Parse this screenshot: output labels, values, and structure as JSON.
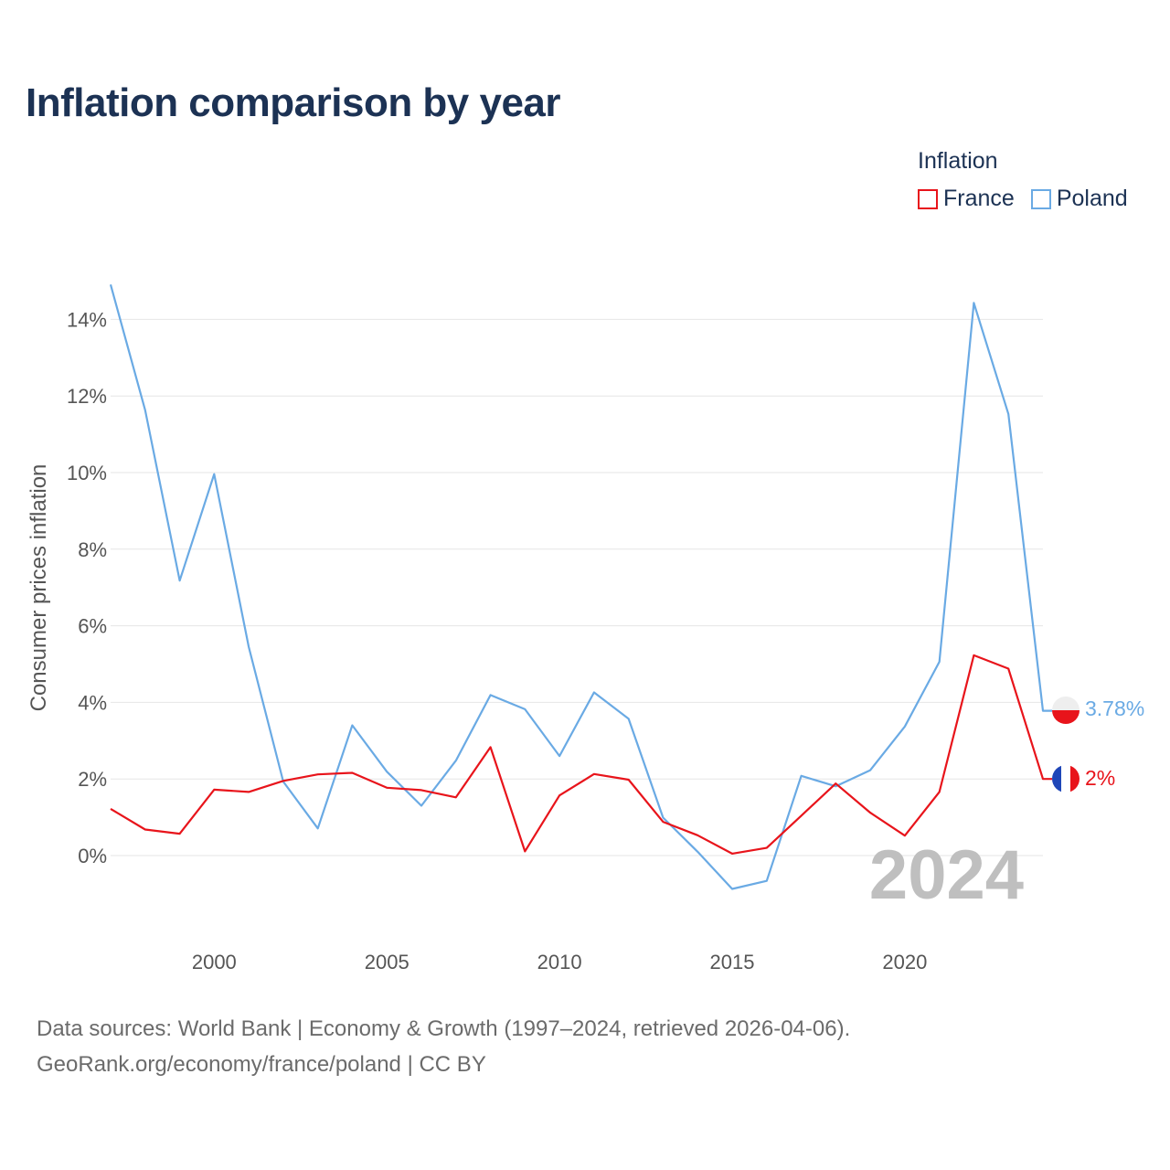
{
  "header": {
    "title": "Inflation comparison by year"
  },
  "legend": {
    "title": "Inflation",
    "items": [
      {
        "label": "France",
        "color": "#e8141b"
      },
      {
        "label": "Poland",
        "color": "#6aaae4"
      }
    ]
  },
  "footer": {
    "line1": "Data sources: World Bank | Economy & Growth (1997–2024, retrieved 2026-04-06).",
    "line2": "GeoRank.org/economy/france/poland | CC BY"
  },
  "chart_data": {
    "type": "line",
    "title": "Inflation comparison by year",
    "ylabel": "Consumer prices inflation",
    "xlabel": "",
    "year_watermark": "2024",
    "x": [
      1997,
      1998,
      1999,
      2000,
      2001,
      2002,
      2003,
      2004,
      2005,
      2006,
      2007,
      2008,
      2009,
      2010,
      2011,
      2012,
      2013,
      2014,
      2015,
      2016,
      2017,
      2018,
      2019,
      2020,
      2021,
      2022,
      2023,
      2024
    ],
    "xticks": [
      2000,
      2005,
      2010,
      2015,
      2020
    ],
    "yticks": [
      0,
      2,
      4,
      6,
      8,
      10,
      12,
      14
    ],
    "ytick_labels": [
      "0%",
      "2%",
      "4%",
      "6%",
      "8%",
      "10%",
      "12%",
      "14%"
    ],
    "xlim": [
      1997,
      2024
    ],
    "ylim": [
      -2,
      15
    ],
    "grid": true,
    "series": [
      {
        "name": "France",
        "color": "#e8141b",
        "end_label": "2%",
        "values": [
          1.22,
          0.68,
          0.57,
          1.72,
          1.66,
          1.95,
          2.12,
          2.16,
          1.77,
          1.71,
          1.52,
          2.83,
          0.11,
          1.57,
          2.13,
          1.98,
          0.88,
          0.53,
          0.05,
          0.2,
          1.04,
          1.88,
          1.12,
          0.52,
          1.66,
          5.23,
          4.88,
          2.0
        ]
      },
      {
        "name": "Poland",
        "color": "#6aaae4",
        "end_label": "3.78%",
        "values": [
          14.91,
          11.63,
          7.18,
          9.96,
          5.45,
          1.93,
          0.71,
          3.4,
          2.19,
          1.3,
          2.48,
          4.19,
          3.82,
          2.6,
          4.26,
          3.57,
          0.99,
          0.1,
          -0.87,
          -0.66,
          2.08,
          1.81,
          2.23,
          3.37,
          5.06,
          14.43,
          11.53,
          3.78
        ]
      }
    ]
  }
}
